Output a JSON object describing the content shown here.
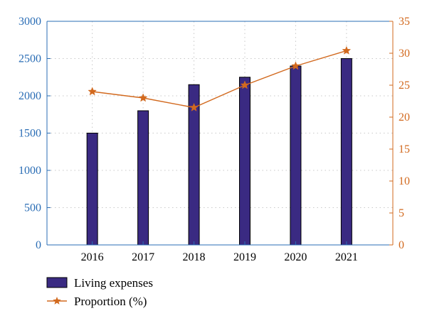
{
  "chart_data": {
    "type": "bar",
    "categories": [
      "2016",
      "2017",
      "2018",
      "2019",
      "2020",
      "2021"
    ],
    "series": [
      {
        "name": "Living expenses",
        "type": "bar",
        "axis": "left",
        "values": [
          1500,
          1800,
          2150,
          2250,
          2400,
          2500
        ]
      },
      {
        "name": "Proportion (%)",
        "type": "line",
        "axis": "right",
        "marker": "star",
        "values": [
          24,
          23,
          21.5,
          25,
          28,
          30.4
        ]
      }
    ],
    "y_left": {
      "lim": [
        0,
        3000
      ],
      "ticks": [
        "0",
        "500",
        "1000",
        "1500",
        "2000",
        "2500",
        "3000"
      ]
    },
    "y_right": {
      "lim": [
        0,
        35
      ],
      "ticks": [
        "0",
        "5",
        "10",
        "15",
        "20",
        "25",
        "30",
        "35"
      ]
    },
    "grid": true,
    "legend_position": "bottom-left",
    "colors": {
      "bar": "#3a2a82",
      "line": "#d2691e",
      "left_axis": "#2a6db5",
      "right_axis": "#d2691e"
    }
  }
}
